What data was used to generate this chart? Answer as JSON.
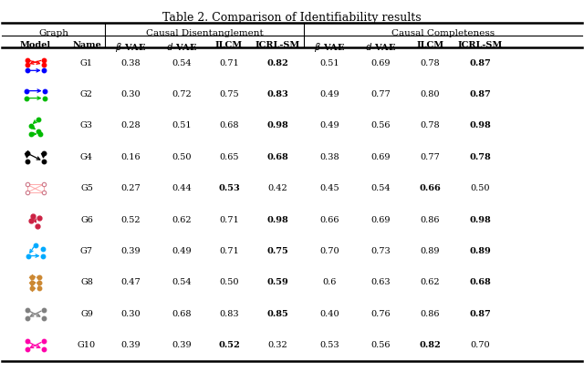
{
  "title": "Table 2. Comparison of Identifiability results",
  "rows": [
    {
      "name": "G1",
      "cd": [
        0.38,
        0.54,
        0.71,
        0.82
      ],
      "cc": [
        0.51,
        0.69,
        0.78,
        0.87
      ],
      "bold_cd": 3,
      "bold_cc": 3
    },
    {
      "name": "G2",
      "cd": [
        0.3,
        0.72,
        0.75,
        0.83
      ],
      "cc": [
        0.49,
        0.77,
        0.8,
        0.87
      ],
      "bold_cd": 3,
      "bold_cc": 3
    },
    {
      "name": "G3",
      "cd": [
        0.28,
        0.51,
        0.68,
        0.98
      ],
      "cc": [
        0.49,
        0.56,
        0.78,
        0.98
      ],
      "bold_cd": 3,
      "bold_cc": 3
    },
    {
      "name": "G4",
      "cd": [
        0.16,
        0.5,
        0.65,
        0.68
      ],
      "cc": [
        0.38,
        0.69,
        0.77,
        0.78
      ],
      "bold_cd": 3,
      "bold_cc": 3
    },
    {
      "name": "G5",
      "cd": [
        0.27,
        0.44,
        0.53,
        0.42
      ],
      "cc": [
        0.45,
        0.54,
        0.66,
        0.5
      ],
      "bold_cd": 2,
      "bold_cc": 2
    },
    {
      "name": "G6",
      "cd": [
        0.52,
        0.62,
        0.71,
        0.98
      ],
      "cc": [
        0.66,
        0.69,
        0.86,
        0.98
      ],
      "bold_cd": 3,
      "bold_cc": 3
    },
    {
      "name": "G7",
      "cd": [
        0.39,
        0.49,
        0.71,
        0.75
      ],
      "cc": [
        0.7,
        0.73,
        0.89,
        0.89
      ],
      "bold_cd": 3,
      "bold_cc": 3
    },
    {
      "name": "G8",
      "cd": [
        0.47,
        0.54,
        0.5,
        0.59
      ],
      "cc": [
        0.6,
        0.63,
        0.62,
        0.68
      ],
      "bold_cd": 3,
      "bold_cc": 3
    },
    {
      "name": "G9",
      "cd": [
        0.3,
        0.68,
        0.83,
        0.85
      ],
      "cc": [
        0.4,
        0.76,
        0.86,
        0.87
      ],
      "bold_cd": 3,
      "bold_cc": 3
    },
    {
      "name": "G10",
      "cd": [
        0.39,
        0.39,
        0.52,
        0.32
      ],
      "cc": [
        0.53,
        0.56,
        0.82,
        0.7
      ],
      "bold_cd": 2,
      "bold_cc": 2
    }
  ],
  "cc_special": {
    "G8_0": "0.6"
  },
  "background_color": "#ffffff"
}
